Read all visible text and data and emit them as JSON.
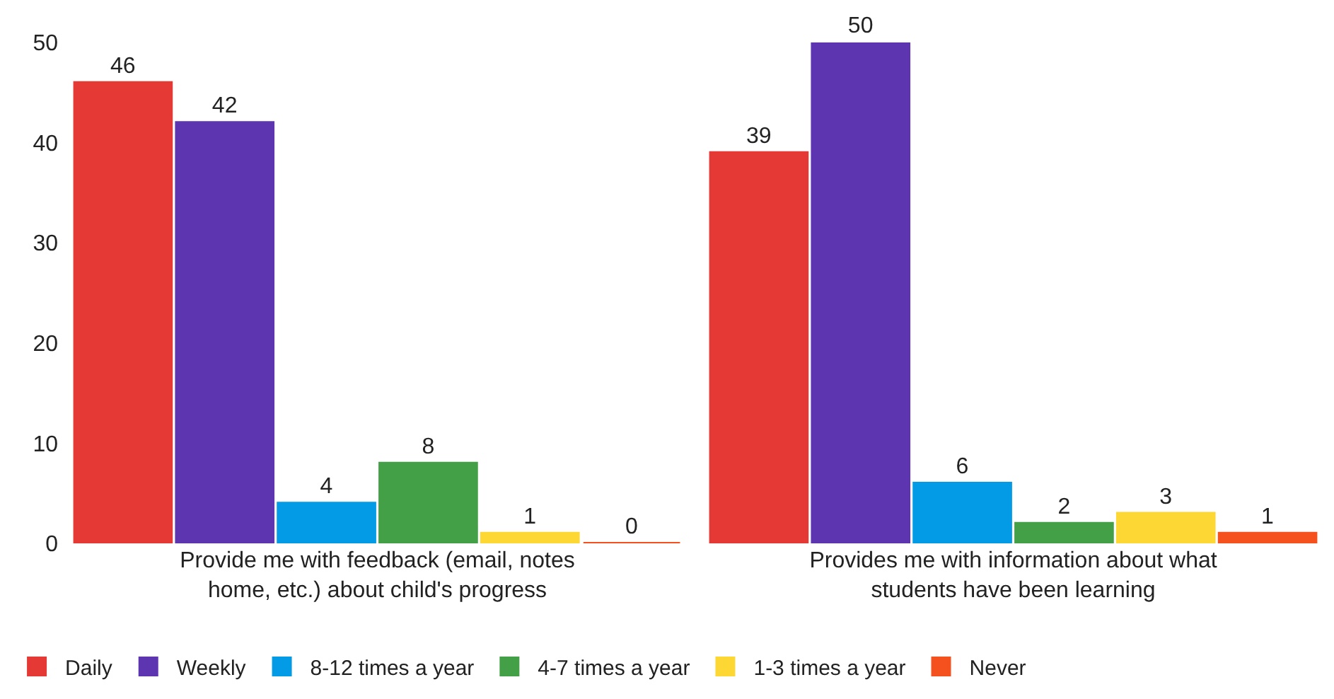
{
  "chart_data": {
    "type": "bar",
    "categories": [
      "Provide me with feedback (email, notes home, etc.) about child's progress",
      "Provides me with information about what students have been learning"
    ],
    "series": [
      {
        "name": "Daily",
        "color": "#e53935",
        "values": [
          46,
          39
        ]
      },
      {
        "name": "Weekly",
        "color": "#5e35b1",
        "values": [
          42,
          50
        ]
      },
      {
        "name": "8-12 times a year",
        "color": "#039be5",
        "values": [
          4,
          6
        ]
      },
      {
        "name": "4-7 times a year",
        "color": "#43a047",
        "values": [
          8,
          2
        ]
      },
      {
        "name": "1-3 times a year",
        "color": "#fdd835",
        "values": [
          1,
          3
        ]
      },
      {
        "name": "Never",
        "color": "#f4511e",
        "values": [
          0,
          1
        ]
      }
    ],
    "ylim": [
      0,
      50
    ],
    "yticks": [
      0,
      10,
      20,
      30,
      40,
      50
    ],
    "legend": "bottom left",
    "data_labels": true
  }
}
